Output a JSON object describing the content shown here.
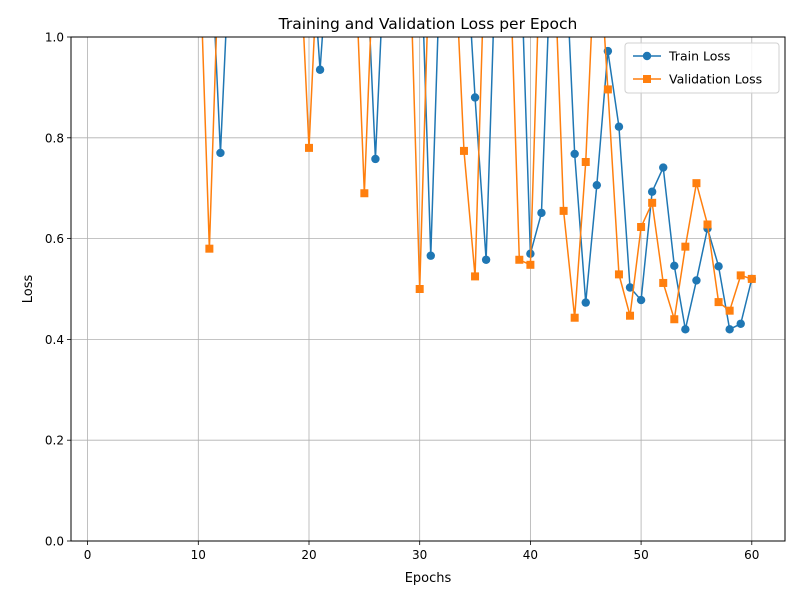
{
  "chart_data": {
    "type": "line",
    "title": "Training and Validation Loss per Epoch",
    "xlabel": "Epochs",
    "ylabel": "Loss",
    "xlim": [
      -1.5,
      63
    ],
    "ylim": [
      0,
      1.0
    ],
    "xticks": [
      0,
      10,
      20,
      30,
      40,
      50,
      60
    ],
    "yticks": [
      0.0,
      0.2,
      0.4,
      0.6,
      0.8,
      1.0
    ],
    "xtick_labels": [
      "0",
      "10",
      "20",
      "30",
      "40",
      "50",
      "60"
    ],
    "ytick_labels": [
      "0.0",
      "0.2",
      "0.4",
      "0.6",
      "0.8",
      "1.0"
    ],
    "grid": true,
    "legend_position": "top-right",
    "series": [
      {
        "name": "Train Loss",
        "color": "#1f77b4",
        "marker": "circle",
        "points": [
          [
            11,
            1.25
          ],
          [
            12,
            0.77
          ],
          [
            13,
            1.25
          ],
          [
            20,
            1.25
          ],
          [
            21,
            0.935
          ],
          [
            22,
            1.25
          ],
          [
            25,
            1.25
          ],
          [
            26,
            0.758
          ],
          [
            27,
            1.25
          ],
          [
            30,
            1.25
          ],
          [
            31,
            0.566
          ],
          [
            32,
            1.25
          ],
          [
            34,
            1.25
          ],
          [
            35,
            0.88
          ],
          [
            36,
            0.558
          ],
          [
            37,
            1.25
          ],
          [
            39,
            1.25
          ],
          [
            40,
            0.57
          ],
          [
            41,
            0.651
          ],
          [
            42,
            1.25
          ],
          [
            43,
            1.25
          ],
          [
            44,
            0.768
          ],
          [
            45,
            0.473
          ],
          [
            46,
            0.706
          ],
          [
            47,
            0.972
          ],
          [
            48,
            0.822
          ],
          [
            49,
            0.503
          ],
          [
            50,
            0.478
          ],
          [
            51,
            0.693
          ],
          [
            52,
            0.741
          ],
          [
            53,
            0.546
          ],
          [
            54,
            0.42
          ],
          [
            55,
            0.517
          ],
          [
            56,
            0.62
          ],
          [
            57,
            0.545
          ],
          [
            58,
            0.42
          ],
          [
            59,
            0.431
          ],
          [
            60,
            0.52
          ]
        ]
      },
      {
        "name": "Validation Loss",
        "color": "#ff7f0e",
        "marker": "square",
        "points": [
          [
            10,
            1.25
          ],
          [
            11,
            0.58
          ],
          [
            12,
            1.25
          ],
          [
            19,
            1.25
          ],
          [
            20,
            0.78
          ],
          [
            21,
            1.25
          ],
          [
            24,
            1.25
          ],
          [
            25,
            0.69
          ],
          [
            26,
            1.25
          ],
          [
            29,
            1.25
          ],
          [
            30,
            0.5
          ],
          [
            31,
            1.25
          ],
          [
            33,
            1.25
          ],
          [
            34,
            0.774
          ],
          [
            35,
            0.525
          ],
          [
            36,
            1.25
          ],
          [
            38,
            1.25
          ],
          [
            39,
            0.558
          ],
          [
            40,
            0.548
          ],
          [
            41,
            1.25
          ],
          [
            42,
            1.25
          ],
          [
            43,
            0.655
          ],
          [
            44,
            0.443
          ],
          [
            45,
            0.752
          ],
          [
            46,
            1.25
          ],
          [
            47,
            0.896
          ],
          [
            48,
            0.529
          ],
          [
            49,
            0.447
          ],
          [
            50,
            0.623
          ],
          [
            51,
            0.671
          ],
          [
            52,
            0.512
          ],
          [
            53,
            0.44
          ],
          [
            54,
            0.584
          ],
          [
            55,
            0.71
          ],
          [
            56,
            0.628
          ],
          [
            57,
            0.474
          ],
          [
            58,
            0.457
          ],
          [
            59,
            0.527
          ],
          [
            60,
            0.52
          ]
        ]
      }
    ]
  }
}
